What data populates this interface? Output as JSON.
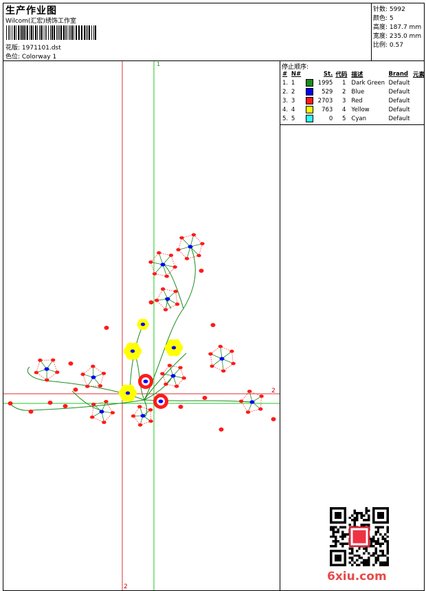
{
  "header": {
    "title": "生产作业图",
    "company": "Wilcom(汇宏)绣饰工作室",
    "design_label": "花版: 1971101.dst",
    "colorway_label": "色位: Colorway 1"
  },
  "specs": [
    {
      "label": "针数",
      "value": "5992"
    },
    {
      "label": "颜色",
      "value": "5"
    },
    {
      "label": "高度",
      "value": "187.7 mm"
    },
    {
      "label": "宽度",
      "value": "235.0 mm"
    },
    {
      "label": "比例",
      "value": "0.57"
    }
  ],
  "stop_sequence": {
    "title": "停止顺序:",
    "headers": [
      "#",
      "N#",
      "",
      "St.",
      "代码",
      "描述",
      "Brand",
      "元素"
    ],
    "rows": [
      {
        "idx": "1.",
        "n": "1",
        "color": "#1a8c1a",
        "stitches": "1995",
        "code": "1",
        "desc": "Dark Green",
        "brand": "Default"
      },
      {
        "idx": "2.",
        "n": "2",
        "color": "#0000ff",
        "stitches": "529",
        "code": "2",
        "desc": "Blue",
        "brand": "Default"
      },
      {
        "idx": "3.",
        "n": "3",
        "color": "#ff1a1a",
        "stitches": "2703",
        "code": "3",
        "desc": "Red",
        "brand": "Default"
      },
      {
        "idx": "4.",
        "n": "4",
        "color": "#ffff00",
        "stitches": "763",
        "code": "4",
        "desc": "Yellow",
        "brand": "Default"
      },
      {
        "idx": "5.",
        "n": "5",
        "color": "#33ffff",
        "stitches": "0",
        "code": "5",
        "desc": "Cyan",
        "brand": "Default"
      }
    ]
  },
  "design": {
    "axis_label_top": "1",
    "axis_label_right": "2",
    "axis_label_bottom": "2"
  },
  "watermark": "6xiu.com"
}
